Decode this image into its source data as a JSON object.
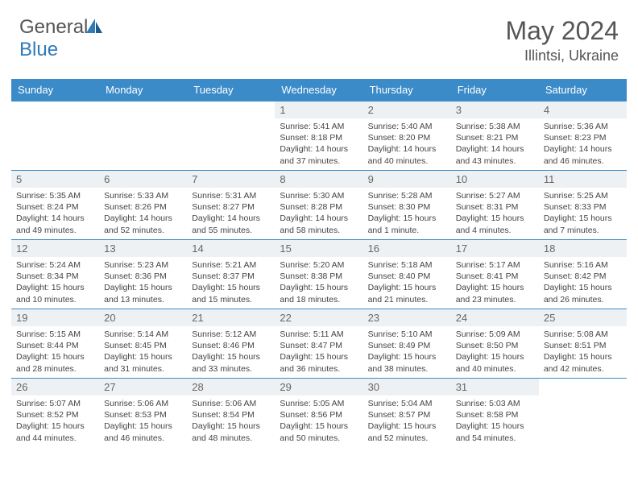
{
  "logo": {
    "text_gray": "General",
    "text_blue": "Blue"
  },
  "title": "May 2024",
  "location": "Illintsi, Ukraine",
  "colors": {
    "header_bg": "#3b8bc9",
    "header_text": "#ffffff",
    "daynum_bg": "#eef1f3",
    "body_text": "#444444",
    "title_text": "#555555",
    "logo_blue": "#2f7ab9"
  },
  "weekdays": [
    "Sunday",
    "Monday",
    "Tuesday",
    "Wednesday",
    "Thursday",
    "Friday",
    "Saturday"
  ],
  "weeks": [
    [
      null,
      null,
      null,
      {
        "n": "1",
        "sr": "5:41 AM",
        "ss": "8:18 PM",
        "dl": "14 hours and 37 minutes."
      },
      {
        "n": "2",
        "sr": "5:40 AM",
        "ss": "8:20 PM",
        "dl": "14 hours and 40 minutes."
      },
      {
        "n": "3",
        "sr": "5:38 AM",
        "ss": "8:21 PM",
        "dl": "14 hours and 43 minutes."
      },
      {
        "n": "4",
        "sr": "5:36 AM",
        "ss": "8:23 PM",
        "dl": "14 hours and 46 minutes."
      }
    ],
    [
      {
        "n": "5",
        "sr": "5:35 AM",
        "ss": "8:24 PM",
        "dl": "14 hours and 49 minutes."
      },
      {
        "n": "6",
        "sr": "5:33 AM",
        "ss": "8:26 PM",
        "dl": "14 hours and 52 minutes."
      },
      {
        "n": "7",
        "sr": "5:31 AM",
        "ss": "8:27 PM",
        "dl": "14 hours and 55 minutes."
      },
      {
        "n": "8",
        "sr": "5:30 AM",
        "ss": "8:28 PM",
        "dl": "14 hours and 58 minutes."
      },
      {
        "n": "9",
        "sr": "5:28 AM",
        "ss": "8:30 PM",
        "dl": "15 hours and 1 minute."
      },
      {
        "n": "10",
        "sr": "5:27 AM",
        "ss": "8:31 PM",
        "dl": "15 hours and 4 minutes."
      },
      {
        "n": "11",
        "sr": "5:25 AM",
        "ss": "8:33 PM",
        "dl": "15 hours and 7 minutes."
      }
    ],
    [
      {
        "n": "12",
        "sr": "5:24 AM",
        "ss": "8:34 PM",
        "dl": "15 hours and 10 minutes."
      },
      {
        "n": "13",
        "sr": "5:23 AM",
        "ss": "8:36 PM",
        "dl": "15 hours and 13 minutes."
      },
      {
        "n": "14",
        "sr": "5:21 AM",
        "ss": "8:37 PM",
        "dl": "15 hours and 15 minutes."
      },
      {
        "n": "15",
        "sr": "5:20 AM",
        "ss": "8:38 PM",
        "dl": "15 hours and 18 minutes."
      },
      {
        "n": "16",
        "sr": "5:18 AM",
        "ss": "8:40 PM",
        "dl": "15 hours and 21 minutes."
      },
      {
        "n": "17",
        "sr": "5:17 AM",
        "ss": "8:41 PM",
        "dl": "15 hours and 23 minutes."
      },
      {
        "n": "18",
        "sr": "5:16 AM",
        "ss": "8:42 PM",
        "dl": "15 hours and 26 minutes."
      }
    ],
    [
      {
        "n": "19",
        "sr": "5:15 AM",
        "ss": "8:44 PM",
        "dl": "15 hours and 28 minutes."
      },
      {
        "n": "20",
        "sr": "5:14 AM",
        "ss": "8:45 PM",
        "dl": "15 hours and 31 minutes."
      },
      {
        "n": "21",
        "sr": "5:12 AM",
        "ss": "8:46 PM",
        "dl": "15 hours and 33 minutes."
      },
      {
        "n": "22",
        "sr": "5:11 AM",
        "ss": "8:47 PM",
        "dl": "15 hours and 36 minutes."
      },
      {
        "n": "23",
        "sr": "5:10 AM",
        "ss": "8:49 PM",
        "dl": "15 hours and 38 minutes."
      },
      {
        "n": "24",
        "sr": "5:09 AM",
        "ss": "8:50 PM",
        "dl": "15 hours and 40 minutes."
      },
      {
        "n": "25",
        "sr": "5:08 AM",
        "ss": "8:51 PM",
        "dl": "15 hours and 42 minutes."
      }
    ],
    [
      {
        "n": "26",
        "sr": "5:07 AM",
        "ss": "8:52 PM",
        "dl": "15 hours and 44 minutes."
      },
      {
        "n": "27",
        "sr": "5:06 AM",
        "ss": "8:53 PM",
        "dl": "15 hours and 46 minutes."
      },
      {
        "n": "28",
        "sr": "5:06 AM",
        "ss": "8:54 PM",
        "dl": "15 hours and 48 minutes."
      },
      {
        "n": "29",
        "sr": "5:05 AM",
        "ss": "8:56 PM",
        "dl": "15 hours and 50 minutes."
      },
      {
        "n": "30",
        "sr": "5:04 AM",
        "ss": "8:57 PM",
        "dl": "15 hours and 52 minutes."
      },
      {
        "n": "31",
        "sr": "5:03 AM",
        "ss": "8:58 PM",
        "dl": "15 hours and 54 minutes."
      },
      null
    ]
  ],
  "labels": {
    "sunrise": "Sunrise:",
    "sunset": "Sunset:",
    "daylight": "Daylight:"
  }
}
